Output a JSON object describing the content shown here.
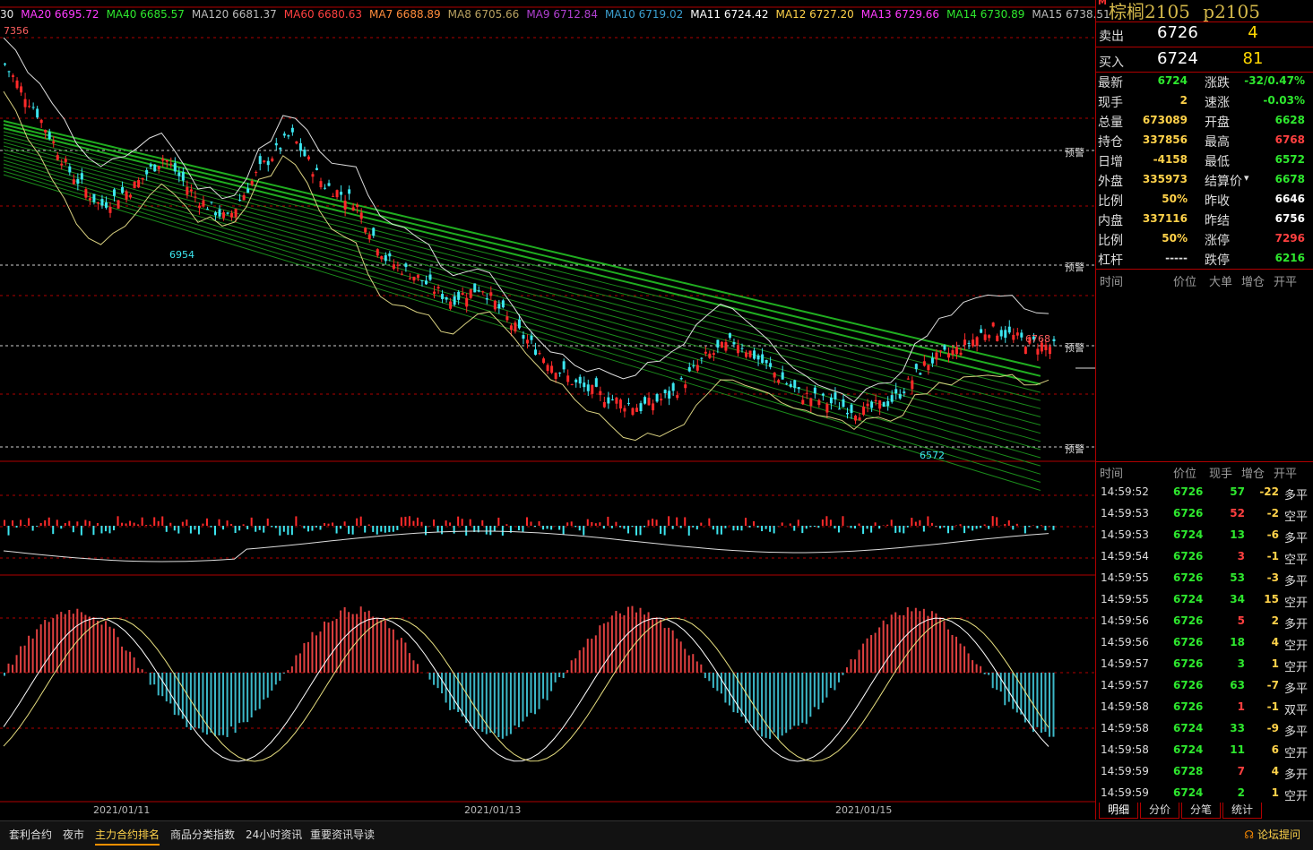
{
  "ma_legend": [
    {
      "label": "30",
      "color": "#e8e8e8"
    },
    {
      "label": "MA20 6695.72",
      "color": "#ff3cff"
    },
    {
      "label": "MA40 6685.57",
      "color": "#2ee82e"
    },
    {
      "label": "MA120 6681.37",
      "color": "#bbbbbb"
    },
    {
      "label": "MA60 6680.63",
      "color": "#ff4040"
    },
    {
      "label": "MA7 6688.89",
      "color": "#ff8c3c"
    },
    {
      "label": "MA8 6705.66",
      "color": "#b8a060"
    },
    {
      "label": "MA9 6712.84",
      "color": "#b040d0"
    },
    {
      "label": "MA10 6719.02",
      "color": "#3ca0d0"
    },
    {
      "label": "MA11 6724.42",
      "color": "#ffffff"
    },
    {
      "label": "MA12 6727.20",
      "color": "#ffd24a"
    },
    {
      "label": "MA13 6729.66",
      "color": "#ff3cff"
    },
    {
      "label": "MA14 6730.89",
      "color": "#2ee82e"
    },
    {
      "label": "MA15 6738.51",
      "color": "#bbbbbb"
    }
  ],
  "chart": {
    "high_label": "7356",
    "low_label_1": "6954",
    "low_label_2": "6572",
    "high_label_2": "6768",
    "alert": "预警",
    "dates": [
      "2021/01/11",
      "2021/01/13",
      "2021/01/15"
    ]
  },
  "chart_data": {
    "type": "candlestick",
    "y_range": [
      6500,
      7400
    ],
    "trend_points": [
      7356,
      7250,
      7120,
      7040,
      7080,
      7150,
      7060,
      7010,
      7120,
      7200,
      7090,
      7050,
      6920,
      6880,
      6830,
      6860,
      6770,
      6700,
      6640,
      6610,
      6590,
      6620,
      6700,
      6740,
      6680,
      6620,
      6600,
      6580,
      6610,
      6690,
      6720,
      6768,
      6740,
      6724
    ]
  },
  "product": {
    "mark": "M",
    "name": "棕榈2105",
    "code": "p2105"
  },
  "quote": {
    "sell_label": "卖出",
    "sell_price": "6726",
    "sell_vol": "4",
    "buy_label": "买入",
    "buy_price": "6724",
    "buy_vol": "81"
  },
  "stats": [
    {
      "k": "最新",
      "v": "6724",
      "c": "#2ee82e",
      "k2": "涨跌",
      "v2": "-32/0.47%",
      "c2": "#2ee82e"
    },
    {
      "k": "现手",
      "v": "2",
      "c": "#ffd24a",
      "k2": "速涨",
      "v2": "-0.03%",
      "c2": "#2ee82e"
    },
    {
      "k": "总量",
      "v": "673089",
      "c": "#ffd24a",
      "k2": "开盘",
      "v2": "6628",
      "c2": "#2ee82e"
    },
    {
      "k": "持仓",
      "v": "337856",
      "c": "#ffd24a",
      "k2": "最高",
      "v2": "6768",
      "c2": "#ff4040"
    },
    {
      "k": "日增",
      "v": "-4158",
      "c": "#ffd24a",
      "k2": "最低",
      "v2": "6572",
      "c2": "#2ee82e"
    },
    {
      "k": "外盘",
      "v": "335973",
      "c": "#ffd24a",
      "k2": "结算价",
      "v2": "6678",
      "c2": "#2ee82e"
    },
    {
      "k": "比例",
      "v": "50%",
      "c": "#ffd24a",
      "k2": "昨收",
      "v2": "6646",
      "c2": "#ffffff"
    },
    {
      "k": "内盘",
      "v": "337116",
      "c": "#ffd24a",
      "k2": "昨结",
      "v2": "6756",
      "c2": "#ffffff"
    },
    {
      "k": "比例",
      "v": "50%",
      "c": "#ffd24a",
      "k2": "涨停",
      "v2": "7296",
      "c2": "#ff4040"
    },
    {
      "k": "杠杆",
      "v": "-----",
      "c": "#dddddd",
      "k2": "跌停",
      "v2": "6216",
      "c2": "#2ee82e"
    }
  ],
  "big_orders_header": {
    "time": "时间",
    "price": "价位",
    "big": "大单",
    "inc": "增仓",
    "type": "开平"
  },
  "ticks_header": {
    "time": "时间",
    "price": "价位",
    "hand": "现手",
    "inc": "增仓",
    "type": "开平"
  },
  "ticks": [
    {
      "t": "14:59:52",
      "p": "6726",
      "q": "57",
      "qc": "#2ee82e",
      "d": "-22",
      "n": "多平"
    },
    {
      "t": "14:59:53",
      "p": "6726",
      "q": "52",
      "qc": "#ff4040",
      "d": "-2",
      "n": "空平"
    },
    {
      "t": "14:59:53",
      "p": "6724",
      "q": "13",
      "qc": "#2ee82e",
      "d": "-6",
      "n": "多平"
    },
    {
      "t": "14:59:54",
      "p": "6726",
      "q": "3",
      "qc": "#ff4040",
      "d": "-1",
      "n": "空平"
    },
    {
      "t": "14:59:55",
      "p": "6726",
      "q": "53",
      "qc": "#2ee82e",
      "d": "-3",
      "n": "多平"
    },
    {
      "t": "14:59:55",
      "p": "6724",
      "q": "34",
      "qc": "#2ee82e",
      "d": "15",
      "n": "空开"
    },
    {
      "t": "14:59:56",
      "p": "6726",
      "q": "5",
      "qc": "#ff4040",
      "d": "2",
      "n": "多开"
    },
    {
      "t": "14:59:56",
      "p": "6726",
      "q": "18",
      "qc": "#2ee82e",
      "d": "4",
      "n": "空开"
    },
    {
      "t": "14:59:57",
      "p": "6726",
      "q": "3",
      "qc": "#2ee82e",
      "d": "1",
      "n": "空开"
    },
    {
      "t": "14:59:57",
      "p": "6726",
      "q": "63",
      "qc": "#2ee82e",
      "d": "-7",
      "n": "多平"
    },
    {
      "t": "14:59:58",
      "p": "6726",
      "q": "1",
      "qc": "#ff4040",
      "d": "-1",
      "n": "双平"
    },
    {
      "t": "14:59:58",
      "p": "6724",
      "q": "33",
      "qc": "#2ee82e",
      "d": "-9",
      "n": "多平"
    },
    {
      "t": "14:59:58",
      "p": "6724",
      "q": "11",
      "qc": "#2ee82e",
      "d": "6",
      "n": "空开"
    },
    {
      "t": "14:59:59",
      "p": "6728",
      "q": "7",
      "qc": "#ff4040",
      "d": "4",
      "n": "多开"
    },
    {
      "t": "14:59:59",
      "p": "6724",
      "q": "2",
      "qc": "#2ee82e",
      "d": "1",
      "n": "空开"
    }
  ],
  "tabs": [
    "明细",
    "分价",
    "分笔",
    "统计"
  ],
  "bottom_tabs": [
    "套利合约",
    "夜市",
    "主力合约排名",
    "商品分类指数",
    "24小时资讯",
    "重要资讯导读"
  ],
  "bottom_active": 2,
  "forum": "论坛提问",
  "colors": {
    "up": "#ff2a2a",
    "down": "#3ce6f0",
    "grid": "#b00000"
  }
}
